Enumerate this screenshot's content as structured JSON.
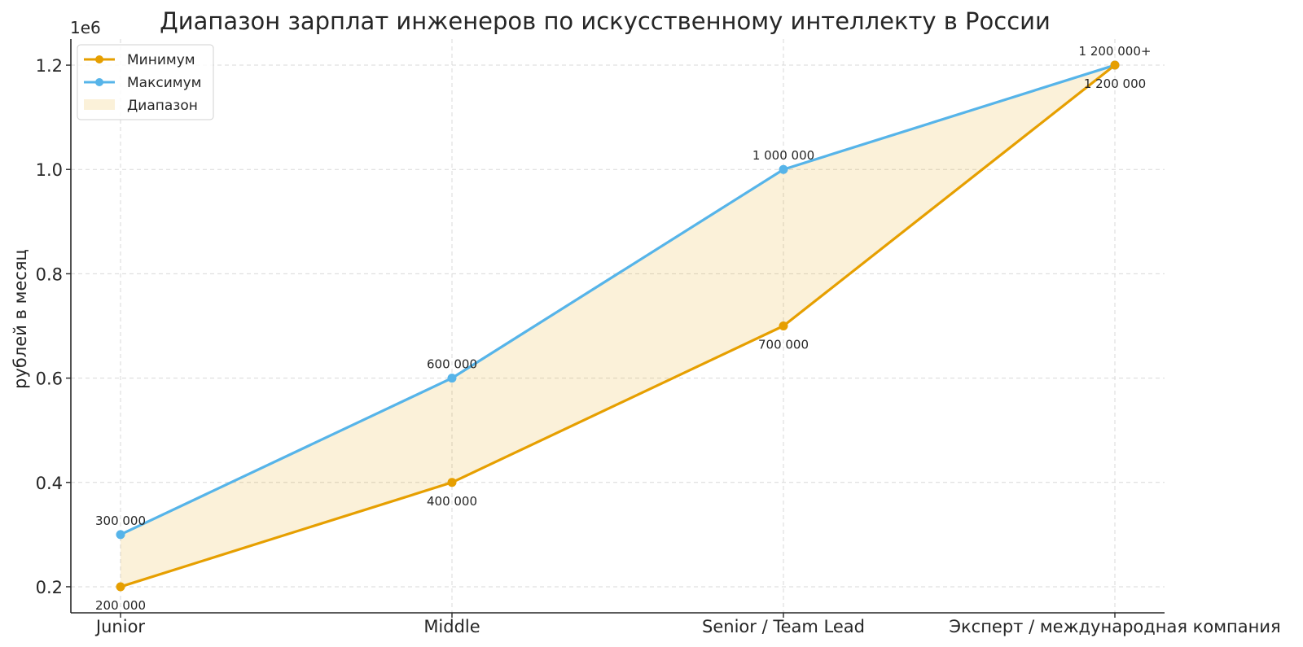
{
  "chart_data": {
    "type": "line",
    "title": "Диапазон зарплат инженеров по искусственному интеллекту в России",
    "xlabel": "",
    "ylabel": "рублей в месяц",
    "y_offset_text": "1e6",
    "categories": [
      "Junior",
      "Middle",
      "Senior / Team Lead",
      "Эксперт / международная компания"
    ],
    "series": [
      {
        "name": "Минимум",
        "color": "#E69F00",
        "values": [
          200000,
          400000,
          700000,
          1200000
        ],
        "labels": [
          "200 000",
          "400 000",
          "700 000",
          "1 200 000"
        ]
      },
      {
        "name": "Максимум",
        "color": "#56B4E9",
        "values": [
          300000,
          600000,
          1000000,
          1200000
        ],
        "labels": [
          "300 000",
          "600 000",
          "1 000 000",
          "1 200 000+"
        ]
      }
    ],
    "fill": {
      "name": "Диапазон",
      "color": "#E69F00",
      "opacity": 0.15
    },
    "ylim": [
      150000,
      1250000
    ],
    "yticks": [
      200000,
      400000,
      600000,
      800000,
      1000000,
      1200000
    ],
    "ytick_labels": [
      "0.2",
      "0.4",
      "0.6",
      "0.8",
      "1.0",
      "1.2"
    ],
    "grid": true,
    "legend_position": "top-left"
  }
}
